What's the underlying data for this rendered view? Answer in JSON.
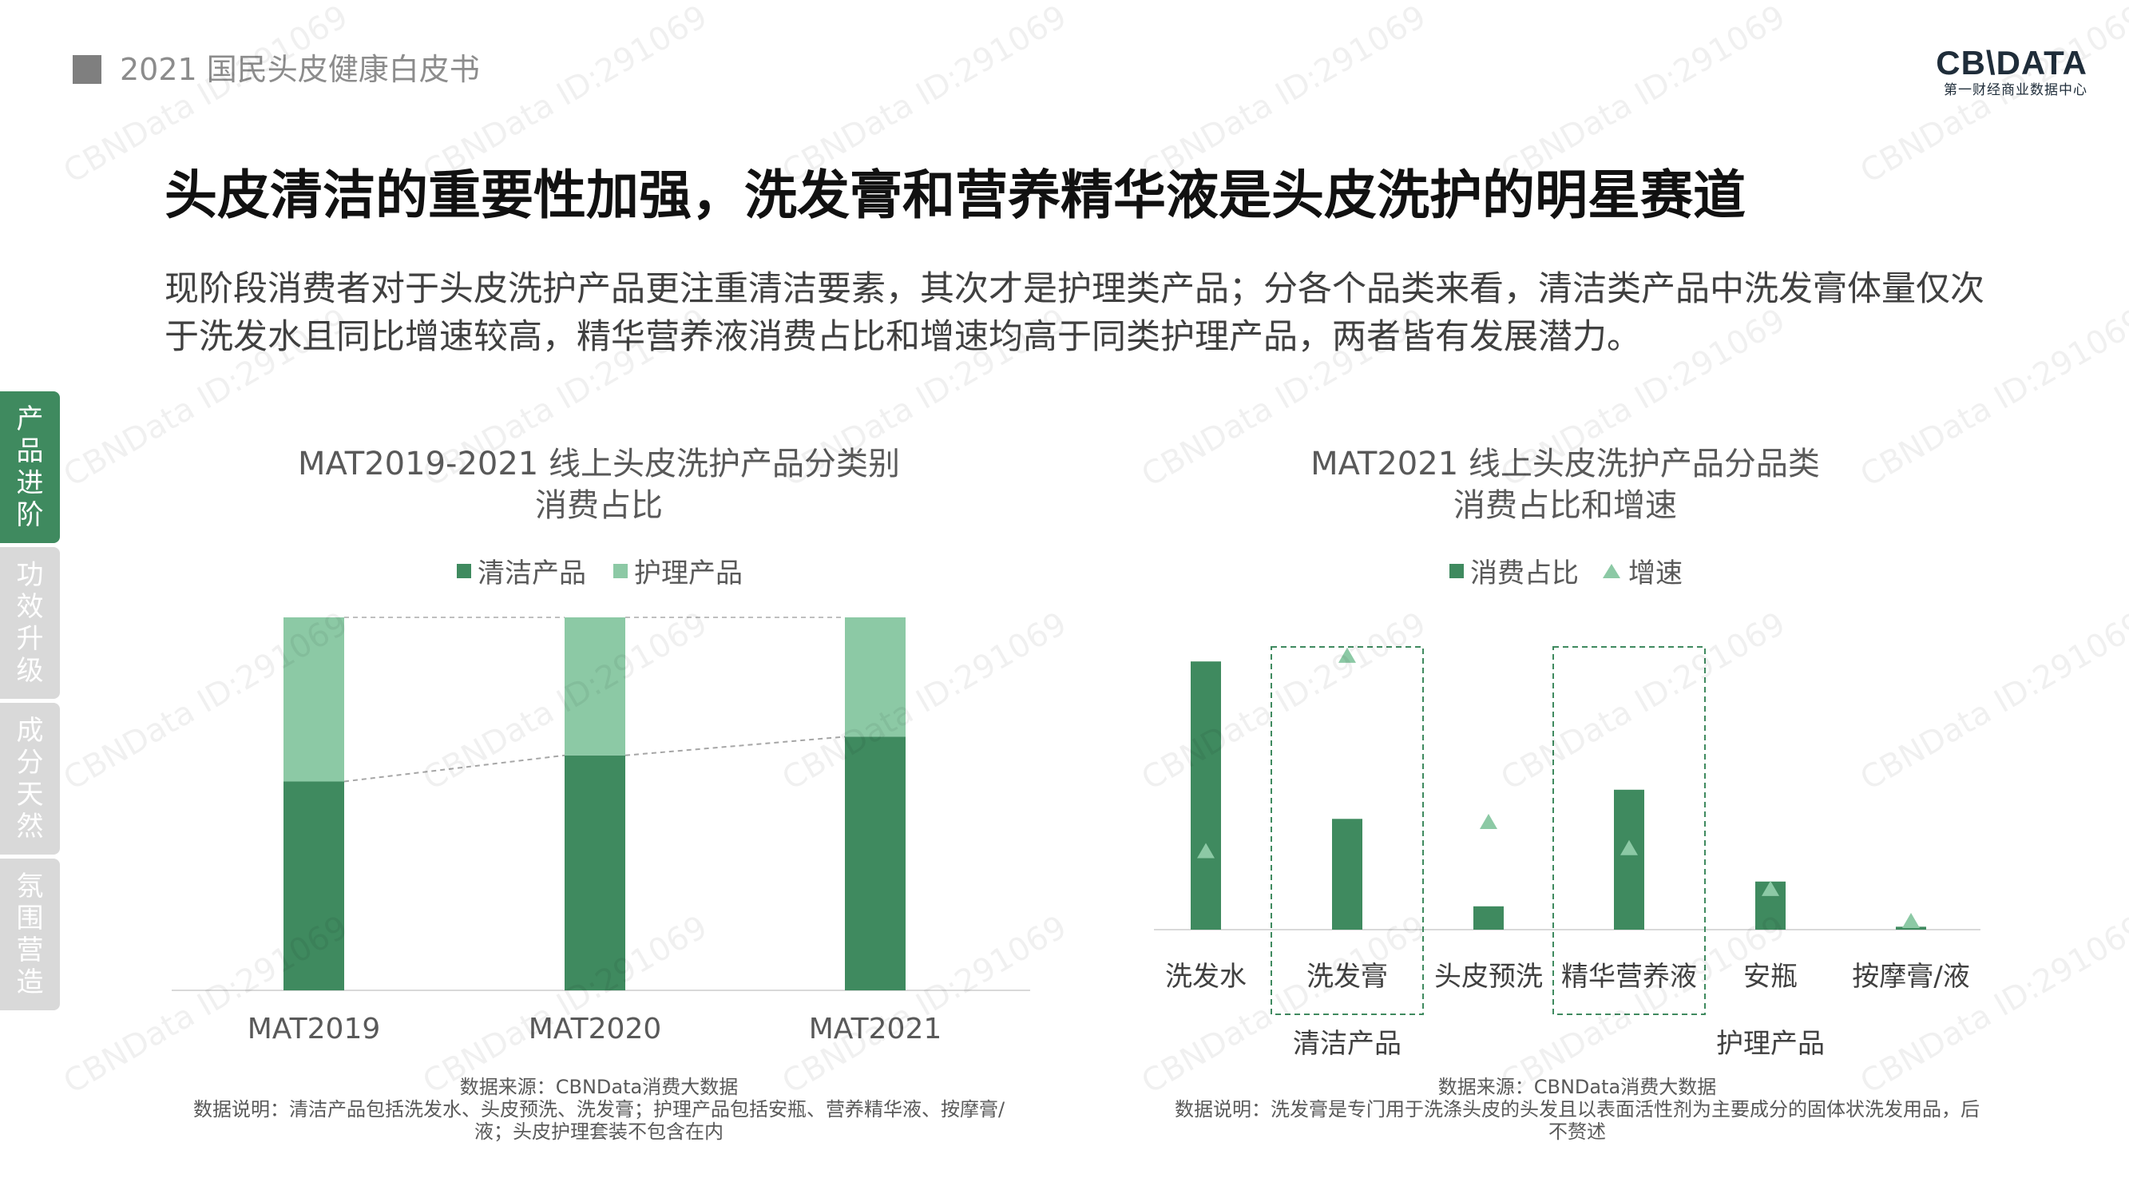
{
  "header": {
    "title": "2021 国民头皮健康白皮书",
    "logo_main": "CB\\DATA",
    "logo_sub": "第一财经商业数据中心"
  },
  "main_title": "头皮清洁的重要性加强，洗发膏和营养精华液是头皮洗护的明星赛道",
  "intro": "现阶段消费者对于头皮洗护产品更注重清洁要素，其次才是护理类产品；分各个品类来看，清洁类产品中洗发膏体量仅次于洗发水且同比增速较高，精华营养液消费占比和增速均高于同类护理产品，两者皆有发展潜力。",
  "side_tabs": [
    {
      "label": "产品进阶",
      "active": true
    },
    {
      "label": "功效升级",
      "active": false
    },
    {
      "label": "成分天然",
      "active": false
    },
    {
      "label": "氛围营造",
      "active": false
    }
  ],
  "watermark": "CBNData ID:291069",
  "colors": {
    "dark_green": "#3f8a5f",
    "light_green": "#8cc9a5",
    "tab_inactive": "#d9d9d9"
  },
  "chart_data": [
    {
      "type": "bar",
      "stacked": true,
      "title": "MAT2019-2021 线上头皮洗护产品分类别",
      "subtitle": "消费占比",
      "categories": [
        "MAT2019",
        "MAT2020",
        "MAT2021"
      ],
      "series": [
        {
          "name": "清洁产品",
          "color": "#3f8a5f",
          "values": [
            0.56,
            0.63,
            0.68
          ]
        },
        {
          "name": "护理产品",
          "color": "#8cc9a5",
          "values": [
            0.44,
            0.37,
            0.32
          ]
        }
      ],
      "ylim": [
        0,
        1
      ],
      "grid": false,
      "legend": "top",
      "notes": [
        "数据来源：CBNData消费大数据",
        "数据说明：清洁产品包括洗发水、头皮预洗、洗发膏；护理产品包括安瓶、营养精华液、按摩膏/液；头皮护理套装不包含在内"
      ]
    },
    {
      "type": "bar",
      "title": "MAT2021 线上头皮洗护产品分品类",
      "subtitle": "消费占比和增速",
      "categories": [
        "洗发水",
        "洗发膏",
        "头皮预洗",
        "精华营养液",
        "安瓶",
        "按摩膏/液"
      ],
      "groups": [
        {
          "label": "清洁产品",
          "categories": [
            "洗发水",
            "洗发膏",
            "头皮预洗"
          ]
        },
        {
          "label": "护理产品",
          "categories": [
            "精华营养液",
            "安瓶",
            "按摩膏/液"
          ]
        }
      ],
      "highlighted": [
        "洗发膏",
        "精华营养液"
      ],
      "series": [
        {
          "name": "消费占比",
          "kind": "bar",
          "color": "#3f8a5f",
          "values": [
            0.92,
            0.38,
            0.08,
            0.48,
            0.165,
            0.01
          ]
        },
        {
          "name": "增速",
          "kind": "marker",
          "color": "#8cc9a5",
          "values": [
            0.27,
            0.94,
            0.37,
            0.28,
            0.14,
            0.03
          ]
        }
      ],
      "ylim": [
        0,
        1
      ],
      "grid": false,
      "legend": "top",
      "notes": [
        "数据来源：CBNData消费大数据",
        "数据说明：洗发膏是专门用于洗涤头皮的头发且以表面活性剂为主要成分的固体状洗发用品，后不赘述"
      ]
    }
  ]
}
